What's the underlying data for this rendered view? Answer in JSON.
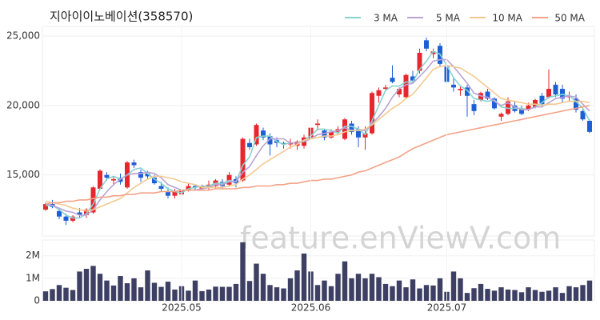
{
  "chart_data": [
    {
      "type": "candlestick",
      "title": "지아이이노베이션(358570)",
      "up_color": "#e8262e",
      "down_color": "#1f5fd6",
      "open": [
        12500,
        12900,
        12400,
        12000,
        11700,
        12300,
        12100,
        12300,
        14000,
        15000,
        14600,
        14800,
        14100,
        15900,
        15200,
        15100,
        14800,
        14200,
        13800,
        13500,
        13600,
        13900,
        14200,
        14000,
        14100,
        14200,
        14500,
        14300,
        14700,
        14600,
        17300,
        17200,
        18200,
        17800,
        17500,
        17300,
        17200,
        17100,
        17100,
        17600,
        18600,
        18200,
        17700,
        18100,
        17600,
        18700,
        18300,
        17700,
        18000,
        20700,
        21200,
        22000,
        20800,
        20600,
        22100,
        22500,
        24700,
        23700,
        24300,
        22800,
        21500,
        21100,
        21300,
        20100,
        20400,
        21000,
        20500,
        19200,
        19400,
        20000,
        19700,
        19700,
        19900,
        20700,
        20600,
        21500,
        21200,
        20600,
        20500,
        19600,
        18900
      ],
      "high": [
        13000,
        13200,
        12600,
        12200,
        12100,
        12600,
        12600,
        14200,
        15400,
        15200,
        14900,
        15100,
        16000,
        16100,
        15400,
        15300,
        15000,
        14500,
        14100,
        14000,
        14000,
        14400,
        14300,
        14300,
        14600,
        14700,
        14700,
        15200,
        14900,
        17700,
        17600,
        18700,
        18400,
        18000,
        17700,
        17400,
        17600,
        17500,
        17900,
        18500,
        19000,
        18300,
        18300,
        18500,
        19100,
        18900,
        18500,
        18500,
        21000,
        21300,
        21500,
        22900,
        21300,
        22300,
        22500,
        24100,
        24900,
        24100,
        24500,
        22900,
        22000,
        21400,
        21500,
        20400,
        21000,
        21200,
        20600,
        19500,
        20600,
        20300,
        20000,
        20200,
        20500,
        20900,
        22600,
        21700,
        21500,
        21000,
        20800,
        19700,
        19000
      ],
      "low": [
        12400,
        12600,
        11800,
        11400,
        11600,
        11900,
        11900,
        12200,
        13900,
        14600,
        14300,
        14300,
        14000,
        15500,
        14500,
        14700,
        14300,
        13800,
        13300,
        13300,
        13500,
        13800,
        13900,
        13900,
        13900,
        14000,
        14000,
        14200,
        14100,
        14500,
        16800,
        17100,
        17500,
        16400,
        17000,
        16900,
        16900,
        16800,
        16900,
        17500,
        18200,
        17500,
        17600,
        17900,
        17500,
        17900,
        17000,
        16800,
        17900,
        20200,
        21000,
        21600,
        20600,
        20500,
        21600,
        22300,
        23900,
        23400,
        22800,
        21600,
        21000,
        20700,
        19200,
        19300,
        20300,
        20400,
        19700,
        18900,
        19300,
        19500,
        19300,
        19600,
        19800,
        19900,
        20500,
        20600,
        20200,
        20300,
        19500,
        18900,
        18000
      ],
      "close": [
        12900,
        12700,
        12000,
        11700,
        12000,
        12100,
        12500,
        14100,
        15300,
        14800,
        14700,
        14500,
        15900,
        15700,
        14800,
        14900,
        14400,
        14000,
        13500,
        13800,
        13900,
        14200,
        14100,
        14200,
        14300,
        14600,
        14200,
        15000,
        14400,
        17600,
        17000,
        18600,
        17700,
        17200,
        17300,
        17200,
        17300,
        17400,
        17700,
        18400,
        18700,
        17700,
        18100,
        18300,
        19000,
        18100,
        17700,
        18000,
        20900,
        21100,
        21300,
        21700,
        21200,
        22200,
        21800,
        23800,
        24100,
        23900,
        23000,
        21700,
        21300,
        21200,
        20700,
        19600,
        20900,
        20500,
        19800,
        19400,
        20300,
        19600,
        19400,
        20000,
        20400,
        20100,
        21200,
        20800,
        20500,
        20700,
        19700,
        19000,
        18100
      ],
      "series": [
        {
          "name": "3 MA",
          "color": "#86d3d0",
          "values": [
            12800,
            12800,
            12500,
            12100,
            11900,
            11900,
            12200,
            12900,
            14000,
            14700,
            14900,
            14700,
            15000,
            15400,
            15500,
            15100,
            14700,
            14400,
            14000,
            13800,
            13700,
            14000,
            14100,
            14200,
            14200,
            14400,
            14400,
            14600,
            14500,
            15700,
            16300,
            17700,
            17800,
            17800,
            17400,
            17200,
            17300,
            17300,
            17500,
            17800,
            18300,
            18300,
            18200,
            18000,
            18500,
            18500,
            18300,
            17900,
            18900,
            20000,
            21100,
            21400,
            21400,
            21700,
            21700,
            22600,
            23200,
            23900,
            23700,
            22900,
            22000,
            21400,
            21100,
            20500,
            20400,
            20300,
            20400,
            19900,
            19800,
            19800,
            19800,
            19700,
            19900,
            20200,
            20600,
            20700,
            20800,
            20700,
            20300,
            19800,
            18900
          ]
        },
        {
          "name": "5 MA",
          "color": "#b9a3d6",
          "values": [
            12900,
            12800,
            12600,
            12400,
            12300,
            12100,
            12100,
            12500,
            13200,
            13800,
            14300,
            14700,
            15000,
            15100,
            15100,
            15200,
            15100,
            14800,
            14300,
            14100,
            13900,
            13900,
            13900,
            14000,
            14100,
            14300,
            14300,
            14500,
            14500,
            15200,
            15600,
            16400,
            17100,
            17600,
            17600,
            17600,
            17300,
            17300,
            17400,
            17600,
            17900,
            18000,
            18100,
            18200,
            18400,
            18200,
            18200,
            18200,
            18700,
            19200,
            19800,
            20600,
            21200,
            21500,
            21600,
            22100,
            22600,
            23200,
            23300,
            23300,
            22800,
            22200,
            21600,
            20900,
            20700,
            20600,
            20300,
            20000,
            20200,
            19900,
            19700,
            19700,
            19900,
            19900,
            20200,
            20500,
            20600,
            20700,
            20600,
            20100,
            19600
          ]
        },
        {
          "name": "10 MA",
          "color": "#f3c98f",
          "values": [
            13100,
            13000,
            12900,
            12800,
            12600,
            12500,
            12400,
            12500,
            12700,
            12900,
            13100,
            13300,
            13700,
            14100,
            14400,
            14700,
            14900,
            14900,
            14800,
            14700,
            14500,
            14400,
            14300,
            14100,
            14100,
            14100,
            14100,
            14200,
            14300,
            14700,
            15000,
            15400,
            15800,
            16100,
            16400,
            16700,
            17000,
            17200,
            17500,
            17600,
            17700,
            17800,
            17800,
            17900,
            18100,
            18200,
            18200,
            18300,
            18600,
            19000,
            19400,
            19800,
            20100,
            20500,
            20800,
            21400,
            22000,
            22600,
            22800,
            22900,
            22800,
            22700,
            22400,
            22100,
            21700,
            21300,
            20900,
            20500,
            20400,
            20300,
            20200,
            20100,
            20100,
            20000,
            20100,
            20100,
            20200,
            20300,
            20300,
            20300,
            20200
          ]
        },
        {
          "name": "50 MA",
          "color": "#f3a287",
          "values": [
            12900,
            13000,
            13000,
            13100,
            13100,
            13200,
            13200,
            13300,
            13400,
            13400,
            13500,
            13500,
            13600,
            13600,
            13700,
            13700,
            13700,
            13800,
            13800,
            13800,
            13900,
            13900,
            13900,
            13900,
            13900,
            14000,
            14000,
            14000,
            14000,
            14100,
            14100,
            14200,
            14200,
            14200,
            14300,
            14300,
            14400,
            14400,
            14500,
            14600,
            14600,
            14700,
            14700,
            14800,
            14900,
            15000,
            15200,
            15300,
            15500,
            15700,
            15900,
            16100,
            16300,
            16600,
            16900,
            17100,
            17300,
            17500,
            17700,
            17900,
            18000,
            18100,
            18200,
            18300,
            18400,
            18500,
            18600,
            18700,
            18800,
            18900,
            19000,
            19100,
            19200,
            19300,
            19400,
            19500,
            19600,
            19700,
            19800,
            19900,
            20000
          ]
        }
      ],
      "ylim": [
        10600,
        25700
      ],
      "yticks": [
        {
          "value": 15000,
          "label": "15,000"
        },
        {
          "value": 20000,
          "label": "20,000"
        },
        {
          "value": 25000,
          "label": "25,000"
        }
      ],
      "grid": true,
      "legend": "top-right",
      "watermark": "feature.enViewV.com"
    },
    {
      "type": "bar",
      "color": "#3d3f63",
      "categories": [
        null,
        null,
        null,
        null,
        null,
        null,
        null,
        null,
        null,
        null,
        null,
        null,
        null,
        null,
        null,
        null,
        null,
        null,
        null,
        null,
        "2025.05",
        null,
        null,
        null,
        null,
        null,
        null,
        null,
        null,
        null,
        null,
        null,
        null,
        null,
        null,
        null,
        null,
        null,
        null,
        "2025.06",
        null,
        null,
        null,
        null,
        null,
        null,
        null,
        null,
        null,
        null,
        null,
        null,
        null,
        null,
        null,
        null,
        null,
        null,
        null,
        "2025.07",
        null,
        null,
        null,
        null,
        null,
        null,
        null,
        null,
        null,
        null,
        null,
        null,
        null,
        null,
        null,
        null,
        null,
        null,
        null,
        null,
        null
      ],
      "values": [
        420000,
        520000,
        700000,
        580000,
        480000,
        1300000,
        1420000,
        1550000,
        1200000,
        900000,
        680000,
        1100000,
        780000,
        1000000,
        600000,
        1350000,
        800000,
        620000,
        850000,
        500000,
        650000,
        450000,
        900000,
        430000,
        500000,
        630000,
        620000,
        620000,
        750000,
        2600000,
        880000,
        1650000,
        1200000,
        700000,
        600000,
        550000,
        1000000,
        1350000,
        2100000,
        1300000,
        700000,
        900000,
        650000,
        1200000,
        1750000,
        1000000,
        1200000,
        1000000,
        1200000,
        1050000,
        750000,
        650000,
        900000,
        600000,
        950000,
        550000,
        700000,
        680000,
        1000000,
        400000,
        1300000,
        1000000,
        350000,
        560000,
        750000,
        530000,
        450000,
        600000,
        500000,
        480000,
        380000,
        600000,
        480000,
        400000,
        450000,
        600000,
        350000,
        650000,
        600000,
        700000,
        900000
      ],
      "ylim": [
        0,
        2700000
      ],
      "yticks": [
        0,
        {
          "value": 1000000,
          "label": "1M"
        },
        {
          "value": 2000000,
          "label": "2M"
        }
      ]
    }
  ]
}
